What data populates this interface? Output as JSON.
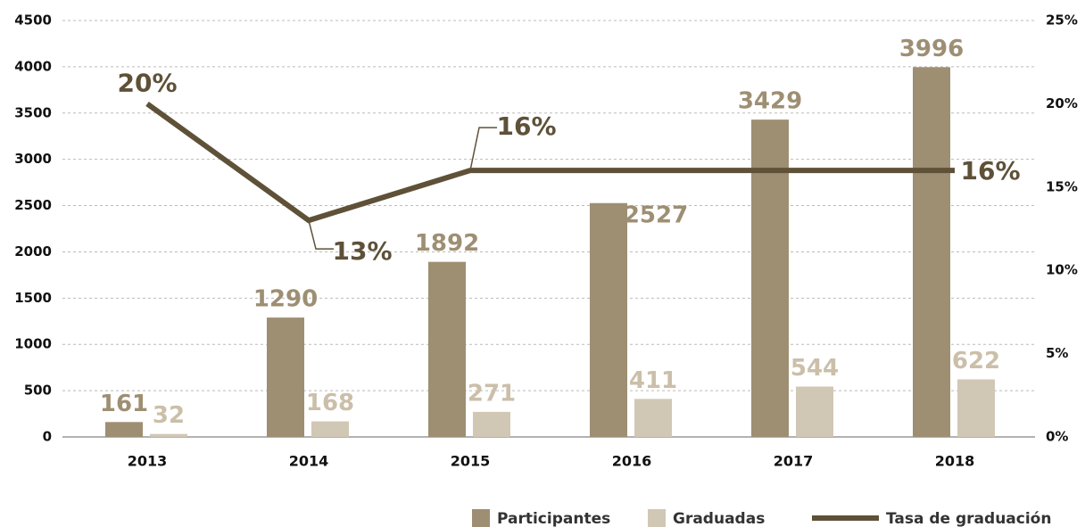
{
  "chart_data": {
    "type": "bar",
    "categories": [
      "2013",
      "2014",
      "2015",
      "2016",
      "2017",
      "2018"
    ],
    "series": [
      {
        "name": "Participantes",
        "color": "#9e8f73",
        "values": [
          161,
          1290,
          1892,
          2527,
          3429,
          3996
        ]
      },
      {
        "name": "Graduadas",
        "color": "#d1c7b5",
        "values": [
          32,
          168,
          271,
          411,
          544,
          622
        ]
      },
      {
        "name": "Tasa de graduación",
        "type": "line",
        "axis": "y2",
        "color": "#5e5138",
        "values": [
          20,
          13,
          16,
          16,
          16,
          16
        ],
        "value_labels": [
          "20%",
          "13%",
          "16%",
          null,
          null,
          "16%"
        ]
      }
    ],
    "ylim": [
      0,
      4500
    ],
    "yticks": [
      0,
      500,
      1000,
      1500,
      2000,
      2500,
      3000,
      3500,
      4000,
      4500
    ],
    "y2lim": [
      0,
      25
    ],
    "y2ticks": [
      {
        "value": 0,
        "label": "0%"
      },
      {
        "value": 5,
        "label": "5%"
      },
      {
        "value": 10,
        "label": "10%"
      },
      {
        "value": 15,
        "label": "15%"
      },
      {
        "value": 20,
        "label": "20%"
      },
      {
        "value": 25,
        "label": "25%"
      }
    ],
    "grid": true,
    "legend": "bottom"
  }
}
